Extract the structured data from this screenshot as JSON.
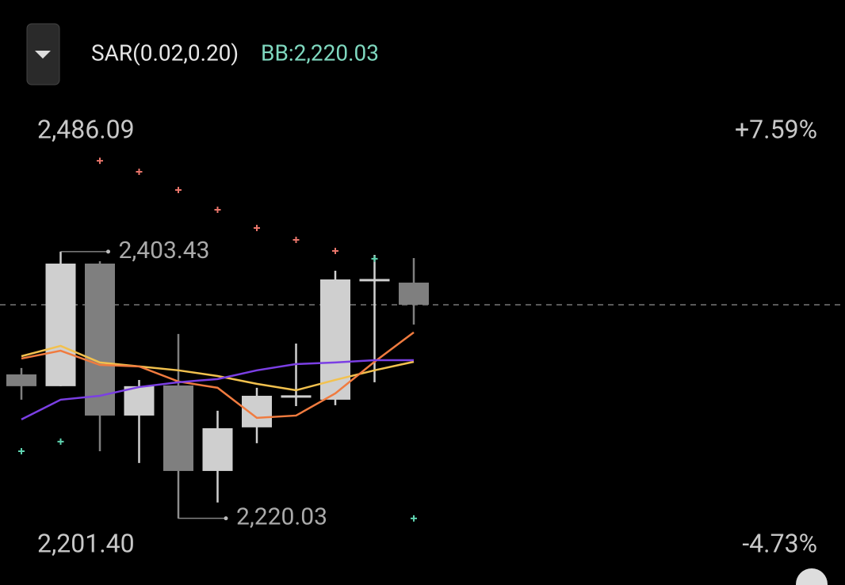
{
  "chart_data": {
    "type": "candlestick",
    "indicators": [
      "SAR(0.02,0.20)",
      "BB:2,220.03"
    ],
    "indicator_colors": [
      "#e6e6e6",
      "#7fd8bf"
    ],
    "open": [
      2319.0,
      2310.9,
      2395.2,
      2290.7,
      2311.4,
      2252.6,
      2282.6,
      2303.8,
      2301.6,
      2383.8,
      2382.1
    ],
    "high": [
      2323.4,
      2403.43,
      2396.8,
      2315.2,
      2346.8,
      2294.0,
      2309.8,
      2340.2,
      2390.3,
      2401.2,
      2399.0
    ],
    "low": [
      2301.6,
      2310.9,
      2266.2,
      2258.1,
      2220.03,
      2230.9,
      2271.7,
      2297.2,
      2297.8,
      2313.6,
      2353.3
    ],
    "close": [
      2310.9,
      2395.2,
      2290.7,
      2310.9,
      2252.6,
      2282.0,
      2304.3,
      2303.8,
      2384.3,
      2383.8,
      2366.9
    ],
    "up_color": "#cfcfcf",
    "down_color": "#7f7f7f",
    "ylim": [
      2201.4,
      2486.09
    ],
    "yticks": [
      {
        "value": 2201.4,
        "label": "2,201.40"
      },
      {
        "value": 2486.09,
        "label": "2,486.09"
      }
    ],
    "y2lim": [
      -4.73,
      7.59
    ],
    "y2ticks": [
      {
        "value": -4.73,
        "label": "-4.73%"
      },
      {
        "value": 7.59,
        "label": "+7.59%"
      }
    ],
    "series": [
      {
        "color": "#f2c14e",
        "values": [
          2331.5,
          2338.6,
          2327.2,
          2324.5,
          2321.8,
          2317.9,
          2312.5,
          2308.1,
          2315.2,
          2321.8,
          2327.7
        ]
      },
      {
        "color": "#f07b3f",
        "values": [
          2329.9,
          2335.3,
          2325.5,
          2324.5,
          2314.1,
          2309.8,
          2289.1,
          2290.7,
          2305.9,
          2327.7,
          2347.9
        ]
      },
      {
        "color": "#7b3fe4",
        "values": [
          2288.0,
          2301.6,
          2304.3,
          2310.3,
          2313.6,
          2315.8,
          2321.8,
          2326.1,
          2327.2,
          2328.8,
          2328.8
        ]
      }
    ],
    "sar": {
      "values": [
        2266.2,
        2272.8,
        2465.9,
        2458.3,
        2445.8,
        2432.2,
        2419.7,
        2411.5,
        2403.9,
        2398.5,
        2220.0
      ],
      "above_color": "#e8756a",
      "below_color": "#5fd3b0"
    },
    "annotations": {
      "high": {
        "value": 2403.43,
        "label": "2,403.43"
      },
      "low": {
        "value": 2220.03,
        "label": "2,220.03"
      }
    }
  }
}
